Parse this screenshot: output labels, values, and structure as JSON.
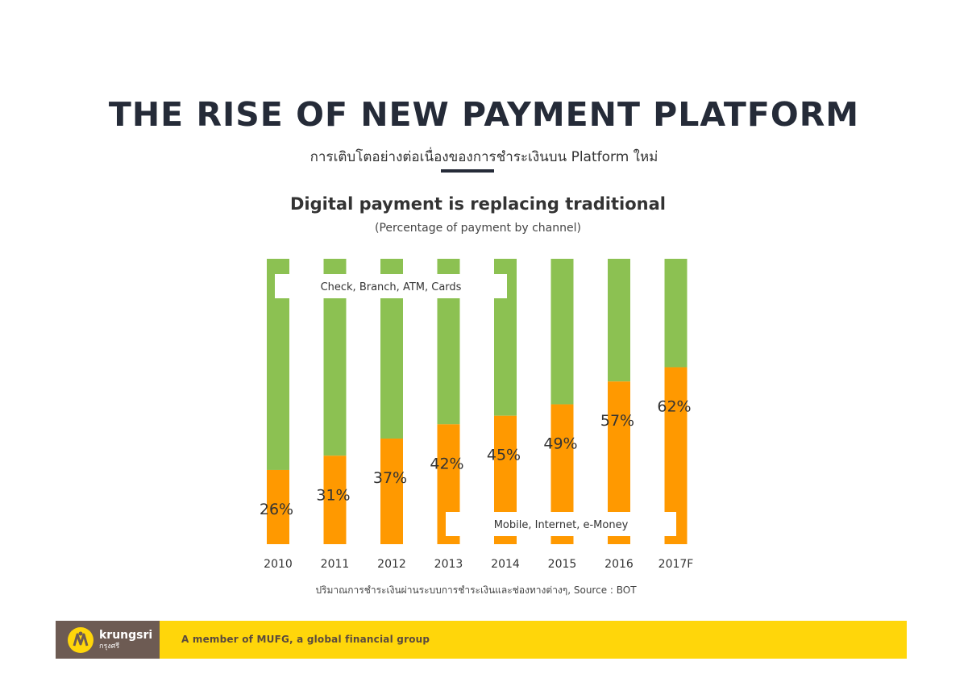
{
  "page": {
    "title": "THE RISE OF NEW PAYMENT PLATFORM",
    "subtitle": "การเติบโตอย่างต่อเนื่องของการชำระเงินบน Platform ใหม่"
  },
  "chart_data": {
    "type": "bar",
    "stacked": true,
    "title": "Digital payment is replacing traditional",
    "subtitle": "(Percentage of payment by channel)",
    "categories": [
      "2010",
      "2011",
      "2012",
      "2013",
      "2014",
      "2015",
      "2016",
      "2017F"
    ],
    "series": [
      {
        "name": "Mobile, Internet, e-Money",
        "values": [
          26,
          31,
          37,
          42,
          45,
          49,
          57,
          62
        ],
        "color": "#ff9900"
      },
      {
        "name": "Check, Branch, ATM, Cards",
        "values": [
          74,
          69,
          63,
          58,
          55,
          51,
          43,
          38
        ],
        "color": "#8cc152"
      }
    ],
    "data_labels": [
      "26%",
      "31%",
      "37%",
      "42%",
      "45%",
      "49%",
      "57%",
      "62%"
    ],
    "ylim": [
      0,
      100
    ]
  },
  "source": "ปริมาณการชำระเงินผ่านระบบการชำระเงินและช่องทางต่างๆ, Source : BOT",
  "footer": {
    "brand": "krungsri",
    "brand_thai": "กรุงศรี",
    "tagline": "A member of MUFG, a global financial group",
    "color_logo_bg": "#6d5b53",
    "color_bar": "#ffd60a"
  }
}
